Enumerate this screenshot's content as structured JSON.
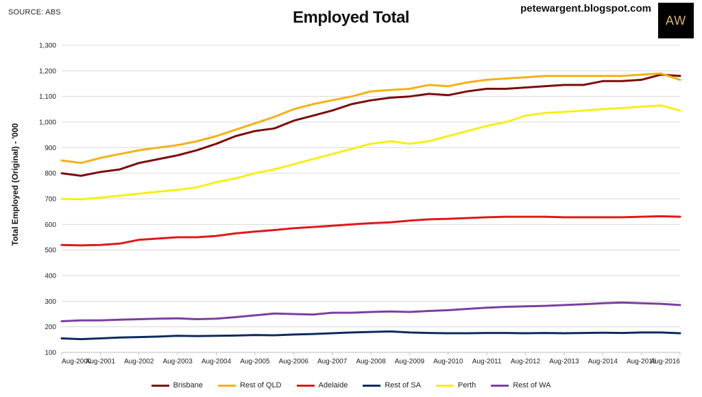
{
  "source_label": "SOURCE: ABS",
  "blog_label": "petewargent.blogspot.com",
  "logo_text": "AW",
  "chart_data": {
    "type": "line",
    "title": "Employed Total",
    "xlabel": "",
    "ylabel": "Total Employed (Original) - '000",
    "ylim": [
      100,
      1300
    ],
    "yticks": [
      100,
      200,
      300,
      400,
      500,
      600,
      700,
      800,
      900,
      1000,
      1100,
      1200,
      1300
    ],
    "ytick_labels": [
      "100",
      "200",
      "300",
      "400",
      "500",
      "600",
      "700",
      "800",
      "900",
      "1,000",
      "1,100",
      "1,200",
      "1,300"
    ],
    "xticks": [
      "Aug-2000",
      "Aug-2001",
      "Aug-2002",
      "Aug-2003",
      "Aug-2004",
      "Aug-2005",
      "Aug-2006",
      "Aug-2007",
      "Aug-2008",
      "Aug-2009",
      "Aug-2010",
      "Aug-2011",
      "Aug-2012",
      "Aug-2013",
      "Aug-2014",
      "Aug-2015",
      "Aug-2016"
    ],
    "grid": "horizontal",
    "legend": "bottom",
    "x": [
      "Aug-2000",
      "Feb-2001",
      "Aug-2001",
      "Feb-2002",
      "Aug-2002",
      "Feb-2003",
      "Aug-2003",
      "Feb-2004",
      "Aug-2004",
      "Feb-2005",
      "Aug-2005",
      "Feb-2006",
      "Aug-2006",
      "Feb-2007",
      "Aug-2007",
      "Feb-2008",
      "Aug-2008",
      "Feb-2009",
      "Aug-2009",
      "Feb-2010",
      "Aug-2010",
      "Feb-2011",
      "Aug-2011",
      "Feb-2012",
      "Aug-2012",
      "Feb-2013",
      "Aug-2013",
      "Feb-2014",
      "Aug-2014",
      "Feb-2015",
      "Aug-2015",
      "Feb-2016",
      "Aug-2016"
    ],
    "series": [
      {
        "name": "Brisbane",
        "color": "#7b0a0a",
        "values": [
          800,
          790,
          805,
          815,
          840,
          855,
          870,
          890,
          915,
          945,
          965,
          975,
          1005,
          1025,
          1045,
          1070,
          1085,
          1095,
          1100,
          1110,
          1105,
          1120,
          1130,
          1130,
          1135,
          1140,
          1145,
          1145,
          1160,
          1160,
          1165,
          1185,
          1180
        ]
      },
      {
        "name": "Rest of QLD",
        "color": "#f5b014",
        "values": [
          850,
          840,
          860,
          875,
          890,
          900,
          910,
          925,
          945,
          970,
          995,
          1020,
          1050,
          1070,
          1085,
          1100,
          1120,
          1125,
          1130,
          1145,
          1140,
          1155,
          1165,
          1170,
          1175,
          1180,
          1180,
          1180,
          1180,
          1180,
          1185,
          1190,
          1165
        ]
      },
      {
        "name": "Adelaide",
        "color": "#e01818",
        "values": [
          520,
          518,
          520,
          525,
          540,
          545,
          550,
          550,
          555,
          565,
          572,
          578,
          585,
          590,
          595,
          600,
          605,
          608,
          615,
          620,
          622,
          625,
          628,
          630,
          630,
          630,
          628,
          628,
          628,
          628,
          630,
          632,
          630
        ]
      },
      {
        "name": "Rest of SA",
        "color": "#0d2a5c",
        "values": [
          155,
          152,
          155,
          158,
          160,
          162,
          165,
          164,
          165,
          166,
          168,
          167,
          170,
          172,
          175,
          178,
          180,
          182,
          178,
          176,
          175,
          175,
          176,
          176,
          175,
          176,
          175,
          176,
          177,
          176,
          178,
          178,
          175
        ]
      },
      {
        "name": "Perth",
        "color": "#f5f014",
        "values": [
          700,
          698,
          705,
          712,
          720,
          728,
          735,
          745,
          765,
          780,
          800,
          815,
          835,
          855,
          875,
          895,
          915,
          925,
          915,
          925,
          945,
          965,
          985,
          1000,
          1025,
          1035,
          1040,
          1045,
          1050,
          1055,
          1060,
          1065,
          1045
        ]
      },
      {
        "name": "Rest of WA",
        "color": "#7b3fa0",
        "values": [
          222,
          225,
          225,
          228,
          230,
          232,
          233,
          230,
          232,
          238,
          245,
          252,
          250,
          248,
          255,
          255,
          258,
          260,
          258,
          262,
          265,
          270,
          275,
          278,
          280,
          282,
          285,
          288,
          292,
          295,
          292,
          290,
          285
        ]
      }
    ]
  }
}
